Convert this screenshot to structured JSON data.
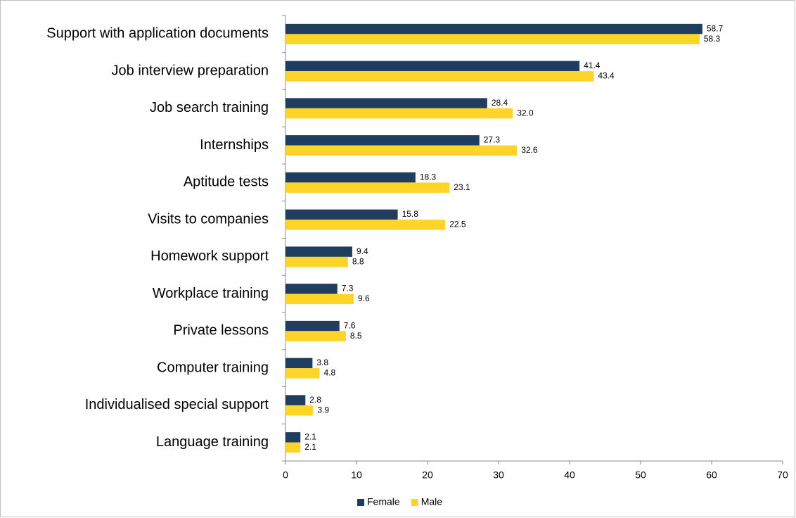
{
  "chart_data": {
    "type": "bar",
    "orientation": "horizontal",
    "categories": [
      "Support with application documents",
      "Job interview preparation",
      "Job search training",
      "Internships",
      "Aptitude tests",
      "Visits to companies",
      "Homework support",
      "Workplace training",
      "Private lessons",
      "Computer training",
      "Individualised special support",
      "Language training"
    ],
    "series": [
      {
        "name": "Female",
        "color": "#1f3d5f",
        "values": [
          58.7,
          41.4,
          28.4,
          27.3,
          18.3,
          15.8,
          9.4,
          7.3,
          7.6,
          3.8,
          2.8,
          2.1
        ],
        "value_labels": [
          "58.7",
          "41.4",
          "28.4",
          "27.3",
          "18.3",
          "15.8",
          "9.4",
          "7.3",
          "7.6",
          "3.8",
          "2.8",
          "2.1"
        ]
      },
      {
        "name": "Male",
        "color": "#ffd428",
        "values": [
          58.3,
          43.4,
          32.0,
          32.6,
          23.1,
          22.5,
          8.8,
          9.6,
          8.5,
          4.8,
          3.9,
          2.1
        ],
        "value_labels": [
          "58.3",
          "43.4",
          "32.0",
          "32.6",
          "23.1",
          "22.5",
          "8.8",
          "9.6",
          "8.5",
          "4.8",
          "3.9",
          "2.1"
        ]
      }
    ],
    "xlim": [
      0,
      70
    ],
    "xticks": [
      0,
      10,
      20,
      30,
      40,
      50,
      60,
      70
    ],
    "grid": false,
    "legend": "bottom"
  }
}
